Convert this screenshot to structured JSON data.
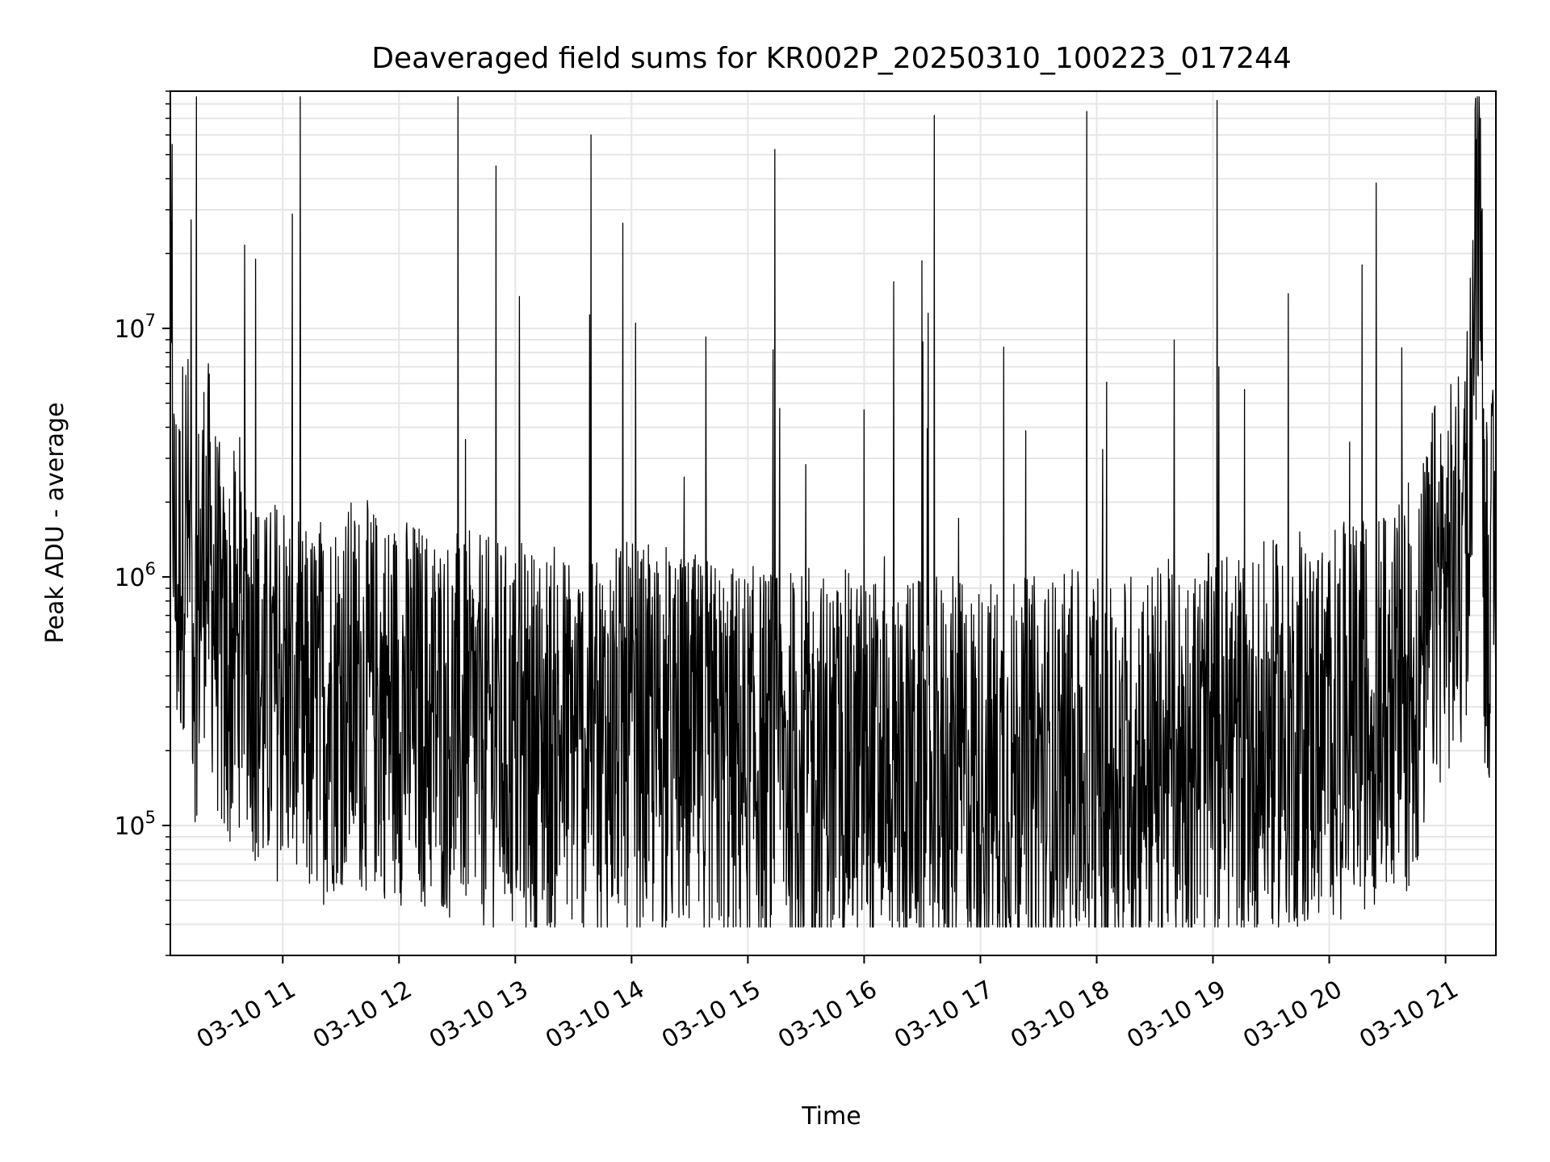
{
  "chart_data": {
    "type": "line",
    "title": "Deaveraged field sums for KR002P_20250310_100223_017244",
    "xlabel": "Time",
    "ylabel": "Peak ADU - average",
    "yscale": "log",
    "grid": true,
    "xlim": [
      "2025-03-10 10:02",
      "2025-03-10 21:26"
    ],
    "ylim": [
      30000,
      90000000
    ],
    "x_ticks": [
      "03-10 11",
      "03-10 12",
      "03-10 13",
      "03-10 14",
      "03-10 15",
      "03-10 16",
      "03-10 17",
      "03-10 18",
      "03-10 19",
      "03-10 20",
      "03-10 21"
    ],
    "y_ticks": [
      {
        "value": 100000,
        "base": "10",
        "exp": "5"
      },
      {
        "value": 1000000,
        "base": "10",
        "exp": "6"
      },
      {
        "value": 10000000,
        "base": "10",
        "exp": "7"
      }
    ],
    "series": [
      {
        "color": "#000000",
        "points": [
          [
            "2025-03-10 10:02",
            4000000
          ],
          [
            "2025-03-10 10:03",
            5500000
          ],
          [
            "2025-03-10 10:04",
            1200000
          ],
          [
            "2025-03-10 10:06",
            900000
          ],
          [
            "2025-03-10 10:10",
            1800000
          ],
          [
            "2025-03-10 10:15",
            600000
          ],
          [
            "2025-03-10 10:20",
            1500000
          ],
          [
            "2025-03-10 10:30",
            400000
          ],
          [
            "2025-03-10 10:40",
            700000
          ],
          [
            "2025-03-10 10:50",
            300000
          ],
          [
            "2025-03-10 11:00",
            400000
          ],
          [
            "2025-03-10 11:10",
            250000
          ],
          [
            "2025-03-10 11:30",
            350000
          ],
          [
            "2025-03-10 12:00",
            300000
          ],
          [
            "2025-03-10 12:30",
            250000
          ],
          [
            "2025-03-10 13:00",
            220000
          ],
          [
            "2025-03-10 14:00",
            220000
          ],
          [
            "2025-03-10 15:00",
            180000
          ],
          [
            "2025-03-10 16:00",
            170000
          ],
          [
            "2025-03-10 17:00",
            160000
          ],
          [
            "2025-03-10 18:00",
            170000
          ],
          [
            "2025-03-10 19:00",
            200000
          ],
          [
            "2025-03-10 20:00",
            250000
          ],
          [
            "2025-03-10 20:45",
            350000
          ],
          [
            "2025-03-10 20:55",
            900000
          ],
          [
            "2025-03-10 21:10",
            1100000
          ],
          [
            "2025-03-10 21:18",
            60000000
          ],
          [
            "2025-03-10 21:20",
            1000000
          ],
          [
            "2025-03-10 21:26",
            900000
          ]
        ],
        "notable_peaks": [
          [
            "2025-03-10 10:03",
            55000000
          ],
          [
            "2025-03-10 10:46",
            19000000
          ],
          [
            "2025-03-10 12:50",
            45000000
          ],
          [
            "2025-03-10 14:02",
            10500000
          ],
          [
            "2025-03-10 15:13",
            8200000
          ],
          [
            "2025-03-10 15:60",
            4700000
          ],
          [
            "2025-03-10 16:33",
            11500000
          ],
          [
            "2025-03-10 17:12",
            8400000
          ],
          [
            "2025-03-10 19:03",
            7000000
          ],
          [
            "2025-03-10 20:17",
            18000000
          ],
          [
            "2025-03-10 21:18",
            70000000
          ]
        ]
      }
    ]
  }
}
